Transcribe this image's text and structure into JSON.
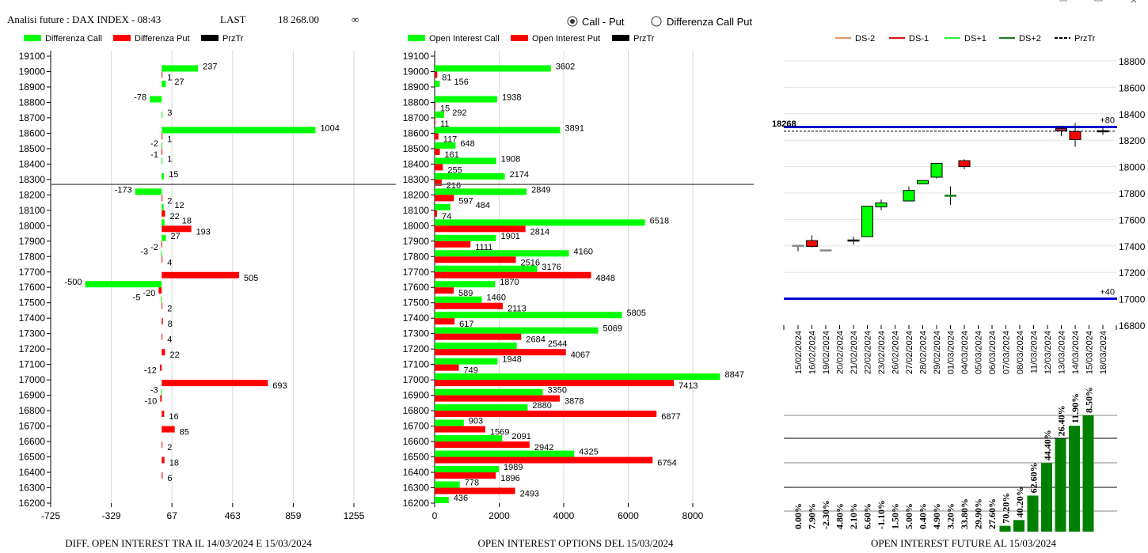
{
  "header": {
    "title": "Analisi future : DAX INDEX - 08:43",
    "last_label": "LAST",
    "last_value": "18 268.00",
    "infinity_symbol": "∞"
  },
  "window_controls": [
    "minimize-icon",
    "maximize-icon",
    "close-icon"
  ],
  "mode_options": [
    {
      "label": "Call - Put",
      "selected": true
    },
    {
      "label": "Differenza Call Put",
      "selected": false
    }
  ],
  "colors": {
    "call": "#00ff00",
    "put": "#ff0000",
    "prztr": "#000000",
    "level_line": "#0000cc",
    "oi_future": "#008000"
  },
  "chart_data": [
    {
      "type": "bar",
      "orientation": "horizontal",
      "title": "DIFF. OPEN INTEREST TRA IL 14/03/2024 E 15/03/2024",
      "legend": [
        "Differenza Call",
        "Differenza Put",
        "PrzTr"
      ],
      "legend_position": "top",
      "categories": [
        19100,
        19000,
        18900,
        18800,
        18700,
        18600,
        18500,
        18400,
        18300,
        18200,
        18100,
        18000,
        17900,
        17800,
        17700,
        17600,
        17500,
        17400,
        17300,
        17200,
        17100,
        17000,
        16900,
        16800,
        16700,
        16600,
        16500,
        16400,
        16300,
        16200
      ],
      "series": [
        {
          "name": "Differenza Call",
          "values": [
            null,
            237,
            27,
            -78,
            3,
            1004,
            -2,
            1,
            15,
            -173,
            12,
            18,
            27,
            -3,
            null,
            -500,
            -5,
            null,
            null,
            null,
            null,
            null,
            -3,
            null,
            null,
            null,
            null,
            null,
            null,
            null
          ]
        },
        {
          "name": "Differenza Put",
          "values": [
            null,
            1,
            null,
            null,
            null,
            1,
            -1,
            null,
            null,
            2,
            22,
            193,
            -2,
            4,
            505,
            -20,
            2,
            8,
            4,
            22,
            -12,
            693,
            -10,
            16,
            85,
            2,
            18,
            6,
            null,
            null
          ]
        }
      ],
      "prztr": 18268,
      "xticks": [
        -725,
        -329,
        67,
        463,
        859,
        1255
      ],
      "xlim": [
        -725,
        1255
      ],
      "grid": true
    },
    {
      "type": "bar",
      "orientation": "horizontal",
      "title": "OPEN INTEREST OPTIONS DEL 15/03/2024",
      "legend": [
        "Open Interest Call",
        "Open Interest Put",
        "PrzTr"
      ],
      "legend_position": "top",
      "categories": [
        19100,
        19000,
        18900,
        18800,
        18700,
        18600,
        18500,
        18400,
        18300,
        18200,
        18100,
        18000,
        17900,
        17800,
        17700,
        17600,
        17500,
        17400,
        17300,
        17200,
        17100,
        17000,
        16900,
        16800,
        16700,
        16600,
        16500,
        16400,
        16300,
        16200
      ],
      "series": [
        {
          "name": "Open Interest Call",
          "values": [
            null,
            3602,
            156,
            1938,
            292,
            3891,
            648,
            1908,
            2174,
            2849,
            484,
            6518,
            1901,
            4160,
            3176,
            1870,
            1460,
            5805,
            5069,
            2544,
            1948,
            8847,
            3350,
            2880,
            903,
            2091,
            4325,
            1989,
            778,
            436
          ]
        },
        {
          "name": "Open Interest Put",
          "values": [
            null,
            81,
            null,
            15,
            11,
            117,
            161,
            255,
            216,
            597,
            74,
            2814,
            1111,
            2516,
            4848,
            589,
            2113,
            617,
            2684,
            4067,
            749,
            7413,
            3878,
            6877,
            1569,
            2942,
            6754,
            1896,
            2493,
            null
          ]
        }
      ],
      "prztr": 18268,
      "xticks": [
        0,
        2000,
        4000,
        6000,
        8000
      ],
      "xlim": [
        0,
        9400
      ],
      "grid": true
    },
    {
      "type": "candlestick",
      "legend": [
        {
          "name": "DS-2",
          "color": "#e8916a",
          "style": "solid"
        },
        {
          "name": "DS-1",
          "color": "#dd1111",
          "style": "solid"
        },
        {
          "name": "DS+1",
          "color": "#33ee33",
          "style": "solid"
        },
        {
          "name": "DS+2",
          "color": "#1e7a1e",
          "style": "solid"
        },
        {
          "name": "PrzTr",
          "color": "#000000",
          "style": "dashed"
        }
      ],
      "legend_position": "top",
      "dates": [
        "15/02/2024",
        "16/02/2024",
        "19/02/2024",
        "20/02/2024",
        "21/02/2024",
        "22/02/2024",
        "23/02/2024",
        "26/02/2024",
        "27/02/2024",
        "28/02/2024",
        "29/02/2024",
        "01/03/2024",
        "04/03/2024",
        "05/03/2024",
        "06/03/2024",
        "07/03/2024",
        "08/03/2024",
        "11/03/2024",
        "12/03/2024",
        "13/03/2024",
        "14/03/2024",
        "15/03/2024",
        "18/03/2024"
      ],
      "candles": [
        {
          "date": "15/02/2024",
          "open": 17405,
          "high": 17405,
          "low": 17360,
          "close": 17405,
          "color": "#888888"
        },
        {
          "date": "16/02/2024",
          "open": 17440,
          "high": 17480,
          "low": 17390,
          "close": 17395,
          "color": "#ff0000"
        },
        {
          "date": "19/02/2024",
          "open": 17370,
          "high": 17370,
          "low": 17370,
          "close": 17370,
          "color": "#888888"
        },
        {
          "date": "21/02/2024",
          "open": 17445,
          "high": 17470,
          "low": 17410,
          "close": 17445,
          "color": "#000000"
        },
        {
          "date": "22/02/2024",
          "open": 17470,
          "high": 17700,
          "low": 17470,
          "close": 17700,
          "color": "#00ff00"
        },
        {
          "date": "23/02/2024",
          "open": 17695,
          "high": 17750,
          "low": 17670,
          "close": 17725,
          "color": "#00ff00"
        },
        {
          "date": "27/02/2024",
          "open": 17740,
          "high": 17850,
          "low": 17740,
          "close": 17820,
          "color": "#00ff00"
        },
        {
          "date": "28/02/2024",
          "open": 17870,
          "high": 17895,
          "low": 17870,
          "close": 17895,
          "color": "#00ff00"
        },
        {
          "date": "29/02/2024",
          "open": 17920,
          "high": 18025,
          "low": 17910,
          "close": 18025,
          "color": "#00ff00"
        },
        {
          "date": "01/03/2024",
          "open": 17775,
          "high": 17850,
          "low": 17710,
          "close": 17785,
          "color": "#228822"
        },
        {
          "date": "04/03/2024",
          "open": 18045,
          "high": 18055,
          "low": 17980,
          "close": 18000,
          "color": "#ff0000"
        },
        {
          "date": "13/03/2024",
          "open": 18290,
          "high": 18310,
          "low": 18230,
          "close": 18270,
          "color": "#993355"
        },
        {
          "date": "14/03/2024",
          "open": 18265,
          "high": 18330,
          "low": 18150,
          "close": 18205,
          "color": "#ff0000"
        },
        {
          "date": "18/03/2024",
          "open": 18272,
          "high": 18290,
          "low": 18240,
          "close": 18268,
          "color": "#000000"
        }
      ],
      "levels": [
        {
          "value": 18300,
          "label": "+80"
        },
        {
          "value": 17000,
          "label": "+40"
        }
      ],
      "prztr": 18268,
      "prztr_label": "18268",
      "yticks": [
        18800,
        18600,
        18400,
        18200,
        18000,
        17800,
        17600,
        17400,
        17200,
        17000,
        16800
      ],
      "ylim": [
        16800,
        18800
      ],
      "grid": true
    },
    {
      "type": "bar",
      "title": "OPEN INTEREST FUTURE AL 15/03/2024",
      "data_labels": [
        "0.00%",
        "7.90%",
        "-2.30%",
        "4.80%",
        "2.10%",
        "6.60%",
        "-1.10%",
        "1.50%",
        "5.00%",
        "0.40%",
        "4.90%",
        "3.20%",
        "33.80%",
        "29.90%",
        "27.60%",
        "70.20%",
        "40.20%",
        "62.60%",
        "44.40%",
        "26.40%",
        "11.90%",
        "8.50%"
      ],
      "relative_levels": [
        0,
        0,
        0,
        0,
        0,
        0,
        0,
        0,
        0,
        0,
        0,
        0,
        0,
        0,
        0,
        0.05,
        0.1,
        0.31,
        0.59,
        0.8,
        0.91,
        1.0
      ],
      "grid": true
    }
  ]
}
